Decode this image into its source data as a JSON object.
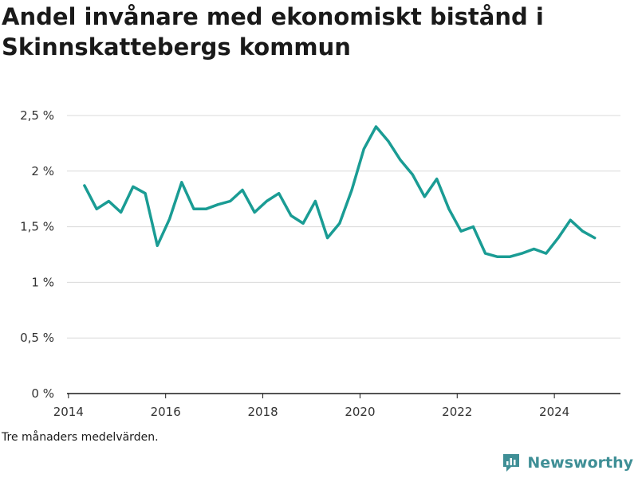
{
  "chart_data": {
    "type": "line",
    "title": "Andel invånare med ekonomiskt bistånd i Skinnskattebergs kommun",
    "xlabel": "",
    "ylabel": "",
    "unit": "%",
    "xlim": [
      2013.97,
      2025.36
    ],
    "ylim": [
      0,
      2.5
    ],
    "y_ticks": [
      0,
      0.5,
      1,
      1.5,
      2,
      2.5
    ],
    "y_tick_labels": [
      "0 %",
      "0,5 %",
      "1 %",
      "1,5 %",
      "2 %",
      "2,5 %"
    ],
    "x_ticks": [
      2014,
      2016,
      2018,
      2020,
      2022,
      2024
    ],
    "x_tick_labels": [
      "2014",
      "2016",
      "2018",
      "2020",
      "2022",
      "2024"
    ],
    "grid": "horizontal",
    "legend": "none",
    "series": [
      {
        "color": "#1a9c94",
        "x": [
          2014.33,
          2014.58,
          2014.83,
          2015.08,
          2015.33,
          2015.58,
          2015.83,
          2016.08,
          2016.33,
          2016.58,
          2016.83,
          2017.08,
          2017.33,
          2017.58,
          2017.83,
          2018.08,
          2018.33,
          2018.58,
          2018.83,
          2019.08,
          2019.33,
          2019.58,
          2019.83,
          2020.08,
          2020.33,
          2020.58,
          2020.83,
          2021.08,
          2021.33,
          2021.58,
          2021.83,
          2022.08,
          2022.33,
          2022.58,
          2022.83,
          2023.08,
          2023.33,
          2023.58,
          2023.83,
          2024.08,
          2024.33,
          2024.58,
          2024.83
        ],
        "y": [
          1.87,
          1.66,
          1.73,
          1.63,
          1.86,
          1.8,
          1.33,
          1.57,
          1.9,
          1.66,
          1.66,
          1.7,
          1.73,
          1.83,
          1.63,
          1.73,
          1.8,
          1.6,
          1.53,
          1.73,
          1.4,
          1.53,
          1.83,
          2.2,
          2.4,
          2.27,
          2.1,
          1.97,
          1.77,
          1.93,
          1.66,
          1.46,
          1.5,
          1.26,
          1.23,
          1.23,
          1.26,
          1.3,
          1.26,
          1.4,
          1.56,
          1.46,
          1.4
        ]
      }
    ]
  },
  "note": "Tre månaders medelvärden.",
  "brand": {
    "name": "Newsworthy",
    "color": "#3f8f96",
    "icon": "newsworthy-logo-icon"
  }
}
